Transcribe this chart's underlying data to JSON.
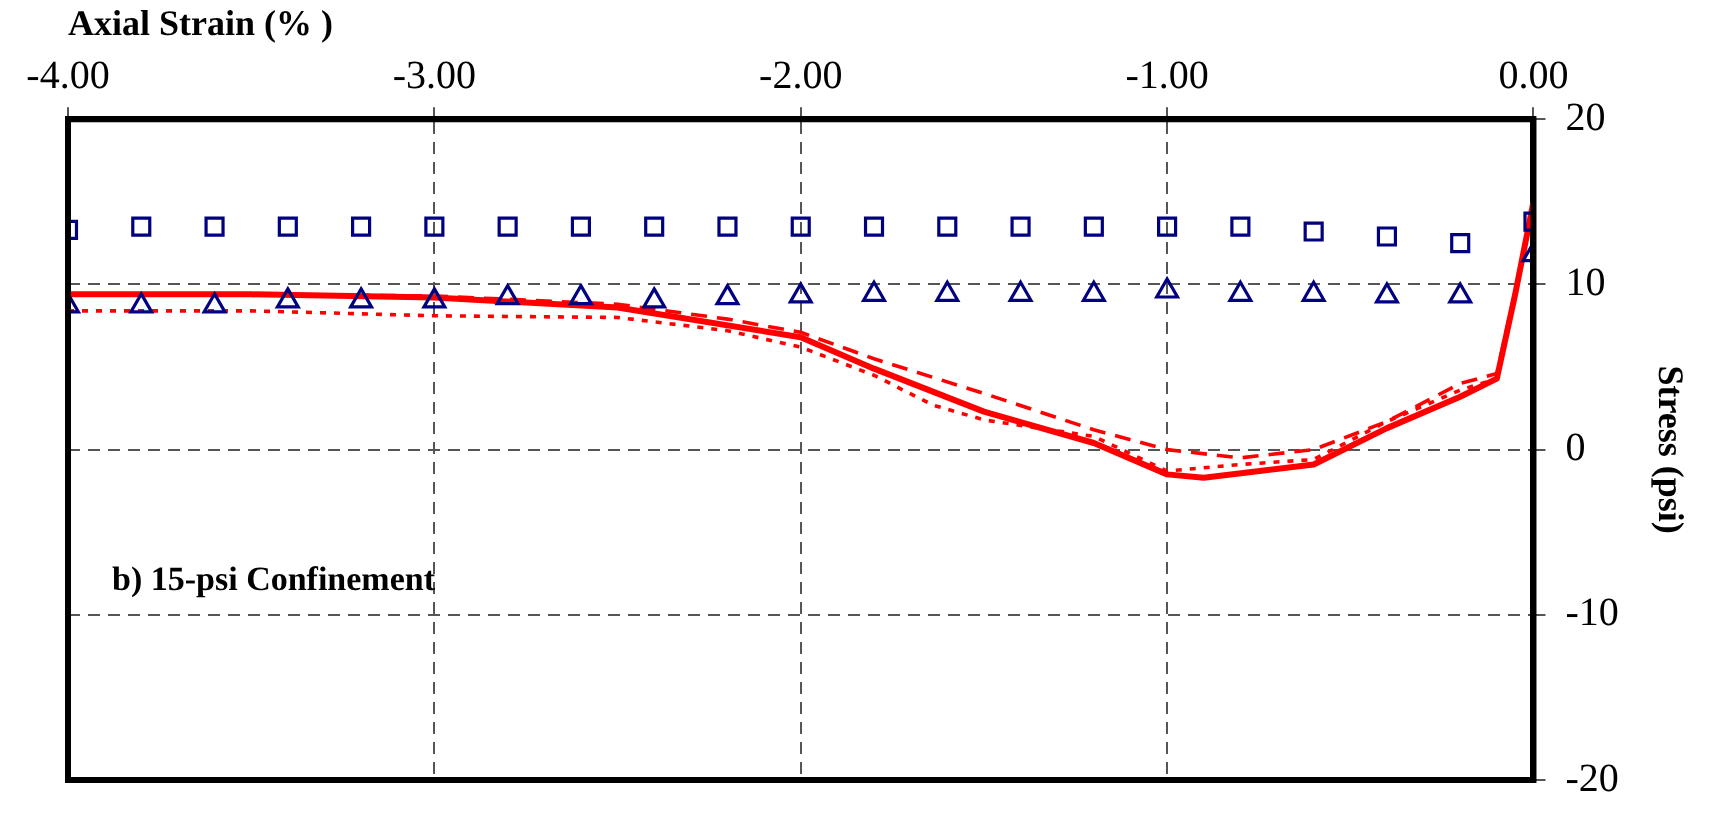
{
  "chart_data": {
    "type": "line",
    "xlabel": "Axial Strain (% )",
    "ylabel": "Stress (psi)",
    "annotations": [
      "b) 15-psi Confinement"
    ],
    "xlim": [
      -4,
      0
    ],
    "xticks": [
      {
        "value": -4,
        "label": "-4.00"
      },
      {
        "value": -3,
        "label": "-3.00"
      },
      {
        "value": -2,
        "label": "-2.00"
      },
      {
        "value": -1,
        "label": "-1.00"
      },
      {
        "value": 0,
        "label": "0.00"
      }
    ],
    "ylim": [
      -20,
      20
    ],
    "yticks": [
      -20,
      -10,
      0,
      10,
      20
    ],
    "grid": true,
    "series": [
      {
        "type": "scatter",
        "color": "#000080",
        "marker": "square",
        "x": [
          -4,
          -3.8,
          -3.6,
          -3.4,
          -3.2,
          -3,
          -2.8,
          -2.6,
          -2.4,
          -2.2,
          -2,
          -1.8,
          -1.6,
          -1.4,
          -1.2,
          -1,
          -0.8,
          -0.6,
          -0.4,
          -0.2,
          0
        ],
        "values": [
          13.3,
          13.5,
          13.5,
          13.5,
          13.5,
          13.5,
          13.5,
          13.5,
          13.5,
          13.5,
          13.5,
          13.5,
          13.5,
          13.5,
          13.5,
          13.5,
          13.5,
          13.2,
          12.9,
          12.5,
          13.8
        ]
      },
      {
        "type": "scatter",
        "color": "#000080",
        "marker": "triangle",
        "x": [
          -4,
          -3.8,
          -3.6,
          -3.4,
          -3.2,
          -3,
          -2.8,
          -2.6,
          -2.4,
          -2.2,
          -2,
          -1.8,
          -1.6,
          -1.4,
          -1.2,
          -1,
          -0.8,
          -0.6,
          -0.4,
          -0.2,
          0
        ],
        "values": [
          8.7,
          8.7,
          8.7,
          9,
          9,
          9,
          9.2,
          9.2,
          9,
          9.2,
          9.3,
          9.4,
          9.4,
          9.4,
          9.4,
          9.6,
          9.4,
          9.4,
          9.3,
          9.3,
          11.8
        ]
      },
      {
        "type": "line",
        "color": "#ff0000",
        "marker": "none",
        "line_style": "solid",
        "x": [
          -4,
          -3.5,
          -3,
          -2.5,
          -2,
          -1.8,
          -1.5,
          -1.2,
          -1,
          -0.9,
          -0.6,
          -0.4,
          -0.2,
          -0.1,
          -0.05,
          0
        ],
        "values": [
          9.4,
          9.4,
          9.2,
          8.6,
          6.8,
          4.9,
          2.3,
          0.4,
          -1.5,
          -1.7,
          -0.9,
          1.3,
          3.2,
          4.3,
          9.4,
          15
        ]
      },
      {
        "type": "line",
        "color": "#ff0000",
        "marker": "none",
        "line_style": "dashed",
        "x": [
          -4,
          -3.5,
          -3,
          -2.5,
          -2.2,
          -2,
          -1.8,
          -1.5,
          -1.2,
          -1,
          -0.8,
          -0.6,
          -0.4,
          -0.2,
          -0.1,
          -0.05,
          0
        ],
        "values": [
          9.4,
          9.4,
          9.3,
          8.8,
          7.9,
          7.1,
          5.5,
          3.4,
          1.2,
          0,
          -0.5,
          0,
          1.7,
          4,
          4.6,
          9.6,
          15
        ]
      },
      {
        "type": "line",
        "color": "#ff0000",
        "marker": "none",
        "line_style": "dotted",
        "x": [
          -4,
          -3.5,
          -3,
          -2.5,
          -2.2,
          -2,
          -1.8,
          -1.64,
          -1.5,
          -1.2,
          -1,
          -0.8,
          -0.6,
          -0.4,
          -0.2,
          -0.1,
          -0.05,
          0
        ],
        "values": [
          8.4,
          8.4,
          8.1,
          8,
          7.2,
          6.2,
          4.5,
          2.7,
          1.8,
          0.8,
          -1.3,
          -0.9,
          -0.6,
          1.7,
          3.6,
          4.3,
          9.4,
          15
        ]
      }
    ]
  }
}
